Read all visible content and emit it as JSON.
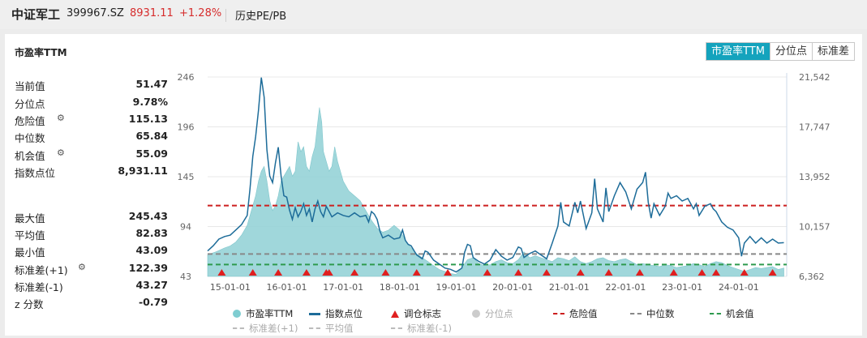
{
  "header": {
    "name": "中证军工",
    "code": "399967.SZ",
    "price": "8931.11",
    "change": "+1.28%",
    "link": "历史PE/PB"
  },
  "panel": {
    "title": "市盈率TTM",
    "tabs": [
      "市盈率TTM",
      "分位点",
      "标准差"
    ]
  },
  "stats": [
    {
      "label": "当前值",
      "value": "51.47",
      "gear": false
    },
    {
      "label": "分位点",
      "value": "9.78%",
      "gear": false
    },
    {
      "label": "危险值",
      "value": "115.13",
      "gear": true
    },
    {
      "label": "中位数",
      "value": "65.84",
      "gear": false
    },
    {
      "label": "机会值",
      "value": "55.09",
      "gear": true
    },
    {
      "label": "指数点位",
      "value": "8,931.11",
      "gear": false
    },
    {
      "label": "最大值",
      "value": "245.43",
      "gear": false
    },
    {
      "label": "平均值",
      "value": "82.83",
      "gear": false
    },
    {
      "label": "最小值",
      "value": "43.09",
      "gear": false
    },
    {
      "label": "标准差(+1)",
      "value": "122.39",
      "gear": true
    },
    {
      "label": "标准差(-1)",
      "value": "43.27",
      "gear": false
    },
    {
      "label": "z 分数",
      "value": "-0.79",
      "gear": false
    }
  ],
  "icons": {
    "gear": "gear-icon"
  },
  "colors": {
    "accent": "#14a3bd",
    "pe_fill": "#8fd0d5",
    "index_line": "#1d6c99",
    "danger": "#cc1f1f",
    "median": "#888888",
    "opportunity": "#2e9a4e",
    "up": "#d62c2c"
  },
  "legend_row1": [
    {
      "label": "市盈率TTM",
      "kind": "dot",
      "color": "#7fcdd1",
      "muted": false
    },
    {
      "label": "指数点位",
      "kind": "line",
      "color": "#1d6c99",
      "muted": false
    },
    {
      "label": "调仓标志",
      "kind": "tri",
      "color": "#e01f1f",
      "muted": false
    },
    {
      "label": "分位点",
      "kind": "dot",
      "color": "#cccccc",
      "muted": true
    },
    {
      "label": "危险值",
      "kind": "dash",
      "color": "#cc1f1f",
      "muted": false
    },
    {
      "label": "中位数",
      "kind": "dash",
      "color": "#888888",
      "muted": false
    },
    {
      "label": "机会值",
      "kind": "dash",
      "color": "#2e9a4e",
      "muted": false
    }
  ],
  "legend_row2": [
    {
      "label": "标准差(+1)",
      "kind": "dash",
      "color": "#bbbbbb",
      "muted": true
    },
    {
      "label": "平均值",
      "kind": "dash",
      "color": "#bbbbbb",
      "muted": true
    },
    {
      "label": "标准差(-1)",
      "kind": "dash",
      "color": "#bbbbbb",
      "muted": true
    }
  ],
  "chart_data": {
    "type": "area",
    "left_axis": {
      "ticks": [
        "246",
        "196",
        "145",
        "94",
        "43"
      ],
      "range": [
        43,
        246
      ]
    },
    "right_axis": {
      "ticks": [
        "21,542",
        "17,747",
        "13,952",
        "10,157",
        "6,362"
      ],
      "range": [
        6362,
        21542
      ]
    },
    "x_ticks": [
      "15-01-01",
      "16-01-01",
      "17-01-01",
      "18-01-01",
      "19-01-01",
      "20-01-01",
      "21-01-01",
      "22-01-01",
      "23-01-01",
      "24-01-01"
    ],
    "x_range": [
      2014.6,
      2024.85
    ],
    "series": [
      {
        "name": "市盈率TTM",
        "axis": "left",
        "points": [
          [
            2014.6,
            65
          ],
          [
            2014.75,
            68
          ],
          [
            2014.9,
            72
          ],
          [
            2015.0,
            74
          ],
          [
            2015.1,
            78
          ],
          [
            2015.2,
            85
          ],
          [
            2015.3,
            95
          ],
          [
            2015.4,
            115
          ],
          [
            2015.45,
            125
          ],
          [
            2015.5,
            140
          ],
          [
            2015.55,
            150
          ],
          [
            2015.6,
            155
          ],
          [
            2015.65,
            140
          ],
          [
            2015.7,
            120
          ],
          [
            2015.75,
            110
          ],
          [
            2015.8,
            115
          ],
          [
            2015.85,
            125
          ],
          [
            2015.9,
            140
          ],
          [
            2015.95,
            145
          ],
          [
            2016.0,
            150
          ],
          [
            2016.05,
            155
          ],
          [
            2016.1,
            145
          ],
          [
            2016.15,
            150
          ],
          [
            2016.2,
            180
          ],
          [
            2016.25,
            170
          ],
          [
            2016.3,
            175
          ],
          [
            2016.35,
            155
          ],
          [
            2016.4,
            150
          ],
          [
            2016.45,
            165
          ],
          [
            2016.5,
            175
          ],
          [
            2016.55,
            200
          ],
          [
            2016.58,
            215
          ],
          [
            2016.62,
            200
          ],
          [
            2016.65,
            170
          ],
          [
            2016.7,
            160
          ],
          [
            2016.75,
            150
          ],
          [
            2016.8,
            155
          ],
          [
            2016.85,
            175
          ],
          [
            2016.9,
            160
          ],
          [
            2016.95,
            150
          ],
          [
            2017.0,
            140
          ],
          [
            2017.1,
            130
          ],
          [
            2017.2,
            125
          ],
          [
            2017.3,
            120
          ],
          [
            2017.4,
            110
          ],
          [
            2017.5,
            100
          ],
          [
            2017.6,
            92
          ],
          [
            2017.7,
            88
          ],
          [
            2017.8,
            90
          ],
          [
            2017.9,
            95
          ],
          [
            2018.0,
            90
          ],
          [
            2018.1,
            80
          ],
          [
            2018.2,
            72
          ],
          [
            2018.3,
            66
          ],
          [
            2018.4,
            62
          ],
          [
            2018.5,
            58
          ],
          [
            2018.6,
            54
          ],
          [
            2018.7,
            50
          ],
          [
            2018.8,
            48
          ],
          [
            2018.9,
            46
          ],
          [
            2019.0,
            45
          ],
          [
            2019.1,
            52
          ],
          [
            2019.2,
            60
          ],
          [
            2019.3,
            62
          ],
          [
            2019.4,
            56
          ],
          [
            2019.5,
            54
          ],
          [
            2019.6,
            55
          ],
          [
            2019.7,
            58
          ],
          [
            2019.8,
            60
          ],
          [
            2019.9,
            57
          ],
          [
            2020.0,
            56
          ],
          [
            2020.1,
            60
          ],
          [
            2020.2,
            68
          ],
          [
            2020.3,
            62
          ],
          [
            2020.4,
            64
          ],
          [
            2020.5,
            62
          ],
          [
            2020.6,
            60
          ],
          [
            2020.7,
            58
          ],
          [
            2020.8,
            62
          ],
          [
            2020.9,
            61
          ],
          [
            2021.0,
            59
          ],
          [
            2021.1,
            63
          ],
          [
            2021.2,
            58
          ],
          [
            2021.3,
            56
          ],
          [
            2021.4,
            58
          ],
          [
            2021.5,
            61
          ],
          [
            2021.6,
            62
          ],
          [
            2021.7,
            59
          ],
          [
            2021.8,
            58
          ],
          [
            2021.9,
            60
          ],
          [
            2022.0,
            61
          ],
          [
            2022.1,
            58
          ],
          [
            2022.2,
            55
          ],
          [
            2022.3,
            56
          ],
          [
            2022.4,
            55
          ],
          [
            2022.5,
            54
          ],
          [
            2022.6,
            53
          ],
          [
            2022.7,
            55
          ],
          [
            2022.8,
            54
          ],
          [
            2022.9,
            52
          ],
          [
            2023.0,
            53
          ],
          [
            2023.1,
            54
          ],
          [
            2023.2,
            56
          ],
          [
            2023.3,
            55
          ],
          [
            2023.4,
            53
          ],
          [
            2023.5,
            56
          ],
          [
            2023.6,
            58
          ],
          [
            2023.7,
            57
          ],
          [
            2023.8,
            54
          ],
          [
            2023.9,
            52
          ],
          [
            2024.0,
            50
          ],
          [
            2024.1,
            48
          ],
          [
            2024.2,
            50
          ],
          [
            2024.3,
            52
          ],
          [
            2024.4,
            51
          ],
          [
            2024.5,
            52
          ],
          [
            2024.6,
            53
          ],
          [
            2024.7,
            50
          ],
          [
            2024.8,
            51.47
          ]
        ]
      },
      {
        "name": "指数点位",
        "axis": "right",
        "points": [
          [
            2014.6,
            8300
          ],
          [
            2014.7,
            8700
          ],
          [
            2014.8,
            9200
          ],
          [
            2014.9,
            9400
          ],
          [
            2015.0,
            9500
          ],
          [
            2015.1,
            9900
          ],
          [
            2015.2,
            10300
          ],
          [
            2015.3,
            11000
          ],
          [
            2015.35,
            13000
          ],
          [
            2015.4,
            15500
          ],
          [
            2015.45,
            17000
          ],
          [
            2015.5,
            19000
          ],
          [
            2015.55,
            21500
          ],
          [
            2015.6,
            20000
          ],
          [
            2015.65,
            16000
          ],
          [
            2015.7,
            14000
          ],
          [
            2015.75,
            13500
          ],
          [
            2015.8,
            15000
          ],
          [
            2015.85,
            16200
          ],
          [
            2015.9,
            14000
          ],
          [
            2015.95,
            12500
          ],
          [
            2016.0,
            12400
          ],
          [
            2016.05,
            11400
          ],
          [
            2016.1,
            10700
          ],
          [
            2016.15,
            11600
          ],
          [
            2016.2,
            10900
          ],
          [
            2016.25,
            11300
          ],
          [
            2016.3,
            11900
          ],
          [
            2016.35,
            11000
          ],
          [
            2016.4,
            11500
          ],
          [
            2016.45,
            10500
          ],
          [
            2016.5,
            11500
          ],
          [
            2016.55,
            12100
          ],
          [
            2016.6,
            11300
          ],
          [
            2016.65,
            10900
          ],
          [
            2016.7,
            11700
          ],
          [
            2016.75,
            11300
          ],
          [
            2016.8,
            10900
          ],
          [
            2016.9,
            11200
          ],
          [
            2017.0,
            11000
          ],
          [
            2017.1,
            10900
          ],
          [
            2017.2,
            11200
          ],
          [
            2017.3,
            10900
          ],
          [
            2017.4,
            11000
          ],
          [
            2017.45,
            10500
          ],
          [
            2017.5,
            11300
          ],
          [
            2017.55,
            11100
          ],
          [
            2017.6,
            10700
          ],
          [
            2017.65,
            9800
          ],
          [
            2017.7,
            9300
          ],
          [
            2017.8,
            9500
          ],
          [
            2017.9,
            9200
          ],
          [
            2018.0,
            9300
          ],
          [
            2018.05,
            9900
          ],
          [
            2018.1,
            9100
          ],
          [
            2018.15,
            8800
          ],
          [
            2018.2,
            8700
          ],
          [
            2018.3,
            8000
          ],
          [
            2018.4,
            7700
          ],
          [
            2018.45,
            8300
          ],
          [
            2018.5,
            8200
          ],
          [
            2018.6,
            7600
          ],
          [
            2018.7,
            7300
          ],
          [
            2018.8,
            7000
          ],
          [
            2018.9,
            6900
          ],
          [
            2019.0,
            6700
          ],
          [
            2019.1,
            7000
          ],
          [
            2019.15,
            8200
          ],
          [
            2019.2,
            8800
          ],
          [
            2019.25,
            8700
          ],
          [
            2019.3,
            7800
          ],
          [
            2019.4,
            7500
          ],
          [
            2019.5,
            7300
          ],
          [
            2019.6,
            7600
          ],
          [
            2019.7,
            8400
          ],
          [
            2019.8,
            7900
          ],
          [
            2019.9,
            7600
          ],
          [
            2020.0,
            7800
          ],
          [
            2020.1,
            8600
          ],
          [
            2020.15,
            8500
          ],
          [
            2020.2,
            7800
          ],
          [
            2020.3,
            8100
          ],
          [
            2020.4,
            8300
          ],
          [
            2020.5,
            8000
          ],
          [
            2020.6,
            7700
          ],
          [
            2020.7,
            8900
          ],
          [
            2020.8,
            10200
          ],
          [
            2020.85,
            12000
          ],
          [
            2020.9,
            10500
          ],
          [
            2021.0,
            10200
          ],
          [
            2021.1,
            12000
          ],
          [
            2021.15,
            11200
          ],
          [
            2021.2,
            12100
          ],
          [
            2021.3,
            10000
          ],
          [
            2021.4,
            11200
          ],
          [
            2021.45,
            13800
          ],
          [
            2021.5,
            11500
          ],
          [
            2021.6,
            10500
          ],
          [
            2021.65,
            13100
          ],
          [
            2021.7,
            11300
          ],
          [
            2021.8,
            12500
          ],
          [
            2021.9,
            13500
          ],
          [
            2022.0,
            12800
          ],
          [
            2022.1,
            11500
          ],
          [
            2022.2,
            13000
          ],
          [
            2022.3,
            13500
          ],
          [
            2022.35,
            14300
          ],
          [
            2022.4,
            12000
          ],
          [
            2022.45,
            10800
          ],
          [
            2022.5,
            11900
          ],
          [
            2022.6,
            11000
          ],
          [
            2022.7,
            11700
          ],
          [
            2022.75,
            12700
          ],
          [
            2022.8,
            12300
          ],
          [
            2022.9,
            12500
          ],
          [
            2023.0,
            12100
          ],
          [
            2023.1,
            12300
          ],
          [
            2023.2,
            11500
          ],
          [
            2023.25,
            11900
          ],
          [
            2023.3,
            11000
          ],
          [
            2023.4,
            11700
          ],
          [
            2023.5,
            11900
          ],
          [
            2023.55,
            11500
          ],
          [
            2023.6,
            11300
          ],
          [
            2023.7,
            10500
          ],
          [
            2023.8,
            10100
          ],
          [
            2023.9,
            9900
          ],
          [
            2024.0,
            9300
          ],
          [
            2024.05,
            7900
          ],
          [
            2024.1,
            8900
          ],
          [
            2024.2,
            9400
          ],
          [
            2024.3,
            8900
          ],
          [
            2024.4,
            9300
          ],
          [
            2024.5,
            8900
          ],
          [
            2024.6,
            9200
          ],
          [
            2024.7,
            8900
          ],
          [
            2024.8,
            8931.11
          ]
        ]
      }
    ],
    "reference_lines": [
      {
        "name": "危险值",
        "value": 115.13,
        "color": "#cc1f1f"
      },
      {
        "name": "中位数",
        "value": 65.84,
        "color": "#888888"
      },
      {
        "name": "机会值",
        "value": 55.09,
        "color": "#2e9a4e"
      }
    ],
    "rebalance_markers": [
      2014.85,
      2015.4,
      2015.85,
      2016.35,
      2016.7,
      2016.75,
      2017.2,
      2017.75,
      2018.3,
      2018.85,
      2019.55,
      2020.1,
      2020.6,
      2021.2,
      2021.7,
      2022.25,
      2022.85,
      2023.35,
      2023.6,
      2024.1,
      2024.6
    ]
  }
}
